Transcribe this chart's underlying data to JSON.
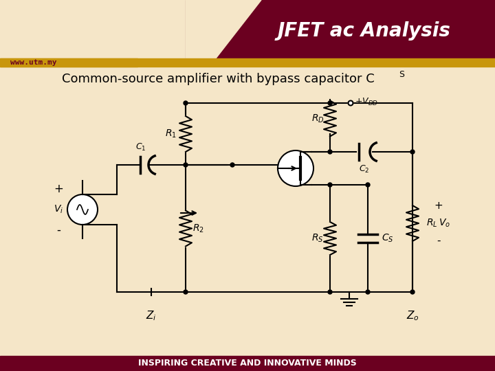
{
  "title": "JFET ac Analysis",
  "subtitle": "Common-source amplifier with bypass capacitor C",
  "subtitle_s": "S",
  "bg_cream": "#F5E6C8",
  "bg_maroon": "#6B0020",
  "bg_gold": "#C8960C",
  "text_maroon": "#6B0020",
  "text_white": "#FFFFFF",
  "text_black": "#000000",
  "footer_text": "INSPIRING CREATIVE AND INNOVATIVE MINDS",
  "www_text": "www.utm.my"
}
